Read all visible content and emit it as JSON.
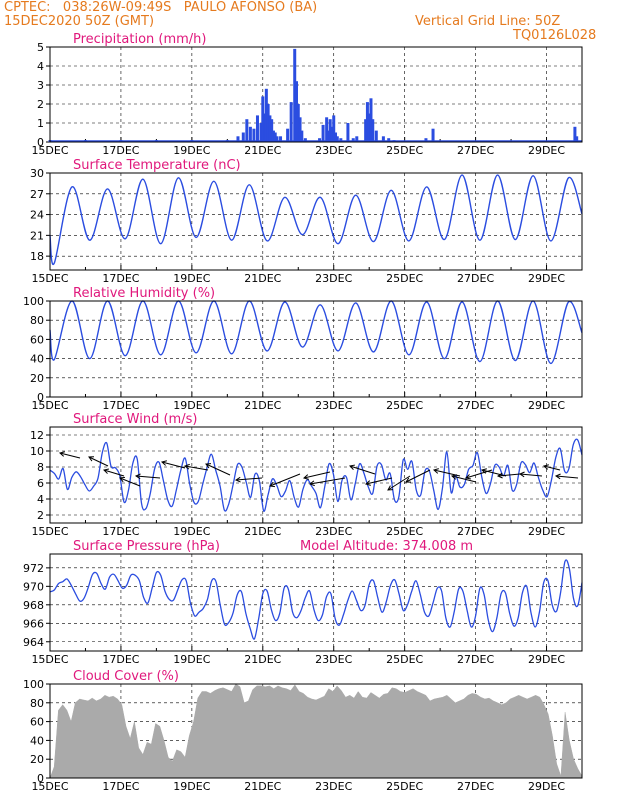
{
  "header": {
    "line1_left": "CPTEC:   038:26W-09:49S   PAULO AFONSO (BA)",
    "line2_left": "15DEC2020 50Z (GMT)",
    "line1_right": "Vertical Grid Line: 50Z",
    "line2_right": "TQ0126L028"
  },
  "colors": {
    "series": "#2b4de0",
    "title": "#e0187c",
    "header": "#e57a1e",
    "cloud": "#aaaaaa",
    "grid": "#000000"
  },
  "dates": [
    "15DEC",
    "17DEC",
    "19DEC",
    "21DEC",
    "23DEC",
    "25DEC",
    "27DEC",
    "29DEC"
  ],
  "chart_data": [
    {
      "id": "precip",
      "type": "bar",
      "title": "Precipitation (mm/h)",
      "xlim": [
        "15DEC",
        "30DEC"
      ],
      "ylim": [
        0,
        5
      ],
      "yticks": [
        0,
        1,
        2,
        3,
        4,
        5
      ],
      "grid": "dashed vertical + horizontal",
      "x_days": [
        0.0,
        1.0,
        2.0,
        3.0,
        4.0,
        5.0,
        5.3,
        5.45,
        5.55,
        5.65,
        5.75,
        5.85,
        5.95,
        6.0,
        6.05,
        6.1,
        6.15,
        6.2,
        6.25,
        6.3,
        6.35,
        6.4,
        6.5,
        6.7,
        6.8,
        6.9,
        6.95,
        7.0,
        7.05,
        7.1,
        7.2,
        7.6,
        7.7,
        7.8,
        7.85,
        7.9,
        7.95,
        8.0,
        8.05,
        8.1,
        8.2,
        8.4,
        8.55,
        8.65,
        8.9,
        8.95,
        9.0,
        9.05,
        9.1,
        9.2,
        9.4,
        9.55,
        9.7,
        10.6,
        10.8,
        14.8,
        14.85
      ],
      "values": [
        0.1,
        0.1,
        0.1,
        0.1,
        0.1,
        0.1,
        0.3,
        0.5,
        1.2,
        0.8,
        0.7,
        1.4,
        1.0,
        2.4,
        1.5,
        2.8,
        2.0,
        1.4,
        1.2,
        0.6,
        0.5,
        0.3,
        0.3,
        0.7,
        2.1,
        4.9,
        3.2,
        2.0,
        1.3,
        0.6,
        0.2,
        0.2,
        0.9,
        1.3,
        0.6,
        1.2,
        0.8,
        1.4,
        0.5,
        0.3,
        0.2,
        1.0,
        0.2,
        0.3,
        1.2,
        2.1,
        1.5,
        2.3,
        1.2,
        0.6,
        0.3,
        0.2,
        0.1,
        0.2,
        0.7,
        0.8,
        0.3
      ]
    },
    {
      "id": "temp",
      "type": "line",
      "title": "Surface Temperature (nC)",
      "xlim": [
        "15DEC",
        "30DEC"
      ],
      "ylim": [
        16,
        30
      ],
      "yticks": [
        18,
        21,
        24,
        27,
        30
      ],
      "daily_max": [
        28,
        27.7,
        29.1,
        29.3,
        28.8,
        28.3,
        26.5,
        26.5,
        26.8,
        27.5,
        28,
        29.7,
        29.7,
        29.6,
        29.3,
        29
      ],
      "daily_min": [
        17.0,
        20.3,
        20.5,
        19.8,
        20.7,
        20.3,
        20.2,
        21.1,
        19.8,
        20.1,
        20.2,
        20.4,
        20.3,
        20.4,
        20.2,
        20.4
      ],
      "start_value": 21.0,
      "end_value": 24.1
    },
    {
      "id": "rh",
      "type": "line",
      "title": "Relative Humidity (%)",
      "xlim": [
        "15DEC",
        "30DEC"
      ],
      "ylim": [
        0,
        100
      ],
      "yticks": [
        0,
        20,
        40,
        60,
        80,
        100
      ],
      "daily_max": [
        100,
        100,
        100,
        100,
        100,
        100,
        99,
        96,
        98,
        100,
        99,
        99,
        100,
        100,
        99,
        100
      ],
      "daily_min": [
        39,
        40,
        43,
        44,
        46,
        45,
        48,
        52,
        48,
        47,
        44,
        40,
        37,
        38,
        35,
        45
      ],
      "start_value": 70,
      "end_value": 67
    },
    {
      "id": "wind",
      "type": "line",
      "title": "Surface Wind (m/s)",
      "xlim": [
        "15DEC",
        "30DEC"
      ],
      "ylim": [
        1,
        13
      ],
      "yticks": [
        2,
        4,
        6,
        8,
        10,
        12
      ],
      "speeds": [
        7.6,
        7.2,
        6.5,
        7.8,
        5.2,
        6.7,
        7.4,
        6.8,
        5.8,
        5.0,
        5.6,
        6.6,
        9.8,
        11.0,
        8.1,
        7.9,
        6.9,
        3.6,
        5.1,
        8.5,
        9.0,
        3.4,
        2.8,
        4.7,
        7.8,
        8.6,
        6.3,
        3.9,
        3.1,
        5.2,
        7.6,
        9.1,
        6.0,
        3.6,
        3.7,
        5.8,
        7.9,
        9.6,
        7.6,
        5.6,
        2.6,
        3.4,
        5.8,
        8.3,
        8.0,
        6.1,
        4.2,
        7.1,
        6.3,
        2.5,
        4.5,
        6.5,
        5.7,
        4.3,
        5.0,
        6.3,
        4.2,
        3.0,
        5.2,
        6.4,
        5.6,
        4.7,
        2.9,
        5.5,
        8.4,
        7.1,
        3.7,
        6.4,
        6.7,
        3.9,
        5.9,
        8.4,
        7.2,
        5.5,
        4.7,
        8.1,
        8.3,
        6.4,
        7.2,
        3.9,
        4.3,
        8.9,
        7.7,
        8.7,
        5.1,
        4.5,
        7.5,
        7.5,
        5.1,
        2.7,
        5.4,
        9.9,
        4.8,
        6.9,
        5.5,
        5.8,
        7.7,
        8.2,
        9.8,
        6.8,
        4.7,
        5.9,
        8.2,
        8.0,
        6.9,
        8.2,
        5.1,
        5.8,
        8.5,
        8.3,
        7.3,
        8.5,
        6.7,
        5.1,
        4.3,
        6.4,
        9.2,
        10.3,
        7.5,
        7.8,
        10.8,
        11.4,
        9.5
      ]
    },
    {
      "id": "pressure",
      "type": "line",
      "title": "Surface Pressure (hPa)",
      "annotation": "Model Altitude: 374.008  m",
      "xlim": [
        "15DEC",
        "30DEC"
      ],
      "ylim": [
        963,
        973.5
      ],
      "yticks": [
        964,
        966,
        968,
        970,
        972
      ],
      "values": [
        969.4,
        969.6,
        970.3,
        970.5,
        970.8,
        970.1,
        969.2,
        968.4,
        968.7,
        969.9,
        971.3,
        971.4,
        970.3,
        969.7,
        971.0,
        971.3,
        970.6,
        969.8,
        970.1,
        971.2,
        971.2,
        970.6,
        968.8,
        968.2,
        969.8,
        971.5,
        971.2,
        969.5,
        968.6,
        968.5,
        969.6,
        970.7,
        970.6,
        968.2,
        966.8,
        967.2,
        967.6,
        968.6,
        970.6,
        970.5,
        968.0,
        965.9,
        966.1,
        967.1,
        969.1,
        969.4,
        967.1,
        965.5,
        964.3,
        966.4,
        969.2,
        969.5,
        967.5,
        966.3,
        967.1,
        969.8,
        969.7,
        967.2,
        966.6,
        967.4,
        968.8,
        969.5,
        967.5,
        966.3,
        966.9,
        968.9,
        969.2,
        966.5,
        965.8,
        967.0,
        968.5,
        969.5,
        968.5,
        967.4,
        967.9,
        970.2,
        970.6,
        968.8,
        967.2,
        968.3,
        970.1,
        970.7,
        969.2,
        967.4,
        968.0,
        969.5,
        970.6,
        969.1,
        967.2,
        966.8,
        968.2,
        969.8,
        969.5,
        966.6,
        965.6,
        967.3,
        969.7,
        969.5,
        967.4,
        965.6,
        966.8,
        969.8,
        969.1,
        966.3,
        965.1,
        966.6,
        969.2,
        969.3,
        967.1,
        965.7,
        966.6,
        969.3,
        970.0,
        967.2,
        965.6,
        967.2,
        970.4,
        970.6,
        968.0,
        967.3,
        969.4,
        972.7,
        972.0,
        968.7,
        967.9,
        970.4
      ]
    },
    {
      "id": "cloud",
      "type": "area",
      "title": "Cloud Cover (%)",
      "xlim": [
        "15DEC",
        "30DEC"
      ],
      "ylim": [
        0,
        100
      ],
      "yticks": [
        0,
        20,
        40,
        60,
        80,
        100
      ],
      "values": [
        0,
        12,
        72,
        78,
        72,
        60,
        80,
        84,
        83,
        82,
        85,
        82,
        84,
        88,
        86,
        87,
        84,
        78,
        55,
        42,
        60,
        32,
        25,
        38,
        36,
        58,
        55,
        40,
        22,
        18,
        30,
        28,
        22,
        45,
        60,
        85,
        92,
        92,
        90,
        93,
        95,
        96,
        94,
        92,
        100,
        97,
        80,
        82,
        94,
        98,
        98,
        97,
        98,
        95,
        98,
        96,
        95,
        93,
        99,
        92,
        90,
        86,
        84,
        83,
        85,
        87,
        95,
        92,
        98,
        93,
        86,
        88,
        85,
        92,
        86,
        85,
        91,
        88,
        85,
        89,
        90,
        96,
        95,
        92,
        91,
        93,
        95,
        92,
        90,
        88,
        82,
        84,
        85,
        86,
        88,
        84,
        80,
        82,
        84,
        88,
        90,
        89,
        86,
        84,
        85,
        82,
        80,
        78,
        80,
        84,
        86,
        88,
        86,
        84,
        86,
        88,
        86,
        78,
        68,
        45,
        15,
        2,
        70,
        40,
        20,
        10,
        2
      ]
    }
  ]
}
